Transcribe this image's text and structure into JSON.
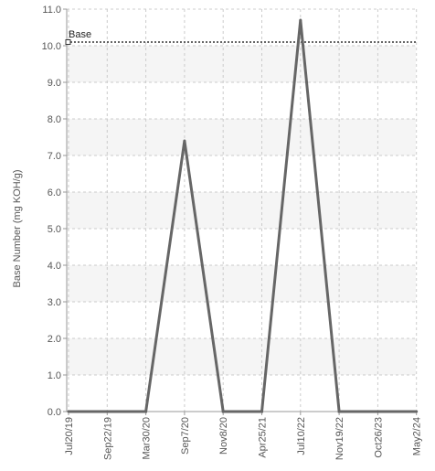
{
  "chart_data": {
    "type": "line",
    "title": "",
    "xlabel": "",
    "ylabel": "Base Number (mg KOH/g)",
    "ylim": [
      0.0,
      11.0
    ],
    "y_ticks": [
      "0.0",
      "1.0",
      "2.0",
      "3.0",
      "4.0",
      "5.0",
      "6.0",
      "7.0",
      "8.0",
      "9.0",
      "10.0",
      "11.0"
    ],
    "x_ticks": [
      "Jul20/19",
      "Sep22/19",
      "Mar30/20",
      "Sep7/20",
      "Nov8/20",
      "Apr25/21",
      "Jul10/22",
      "Nov19/22",
      "Oct26/23",
      "May2/24"
    ],
    "grid": true,
    "series": [
      {
        "values": [
          0.0,
          0.0,
          0.0,
          7.4,
          0.0,
          0.0,
          10.7,
          0.0,
          0.0,
          0.0
        ],
        "color": "#666666"
      }
    ],
    "reference_line": {
      "label": "Base",
      "value": 10.1,
      "color": "#333333"
    }
  }
}
